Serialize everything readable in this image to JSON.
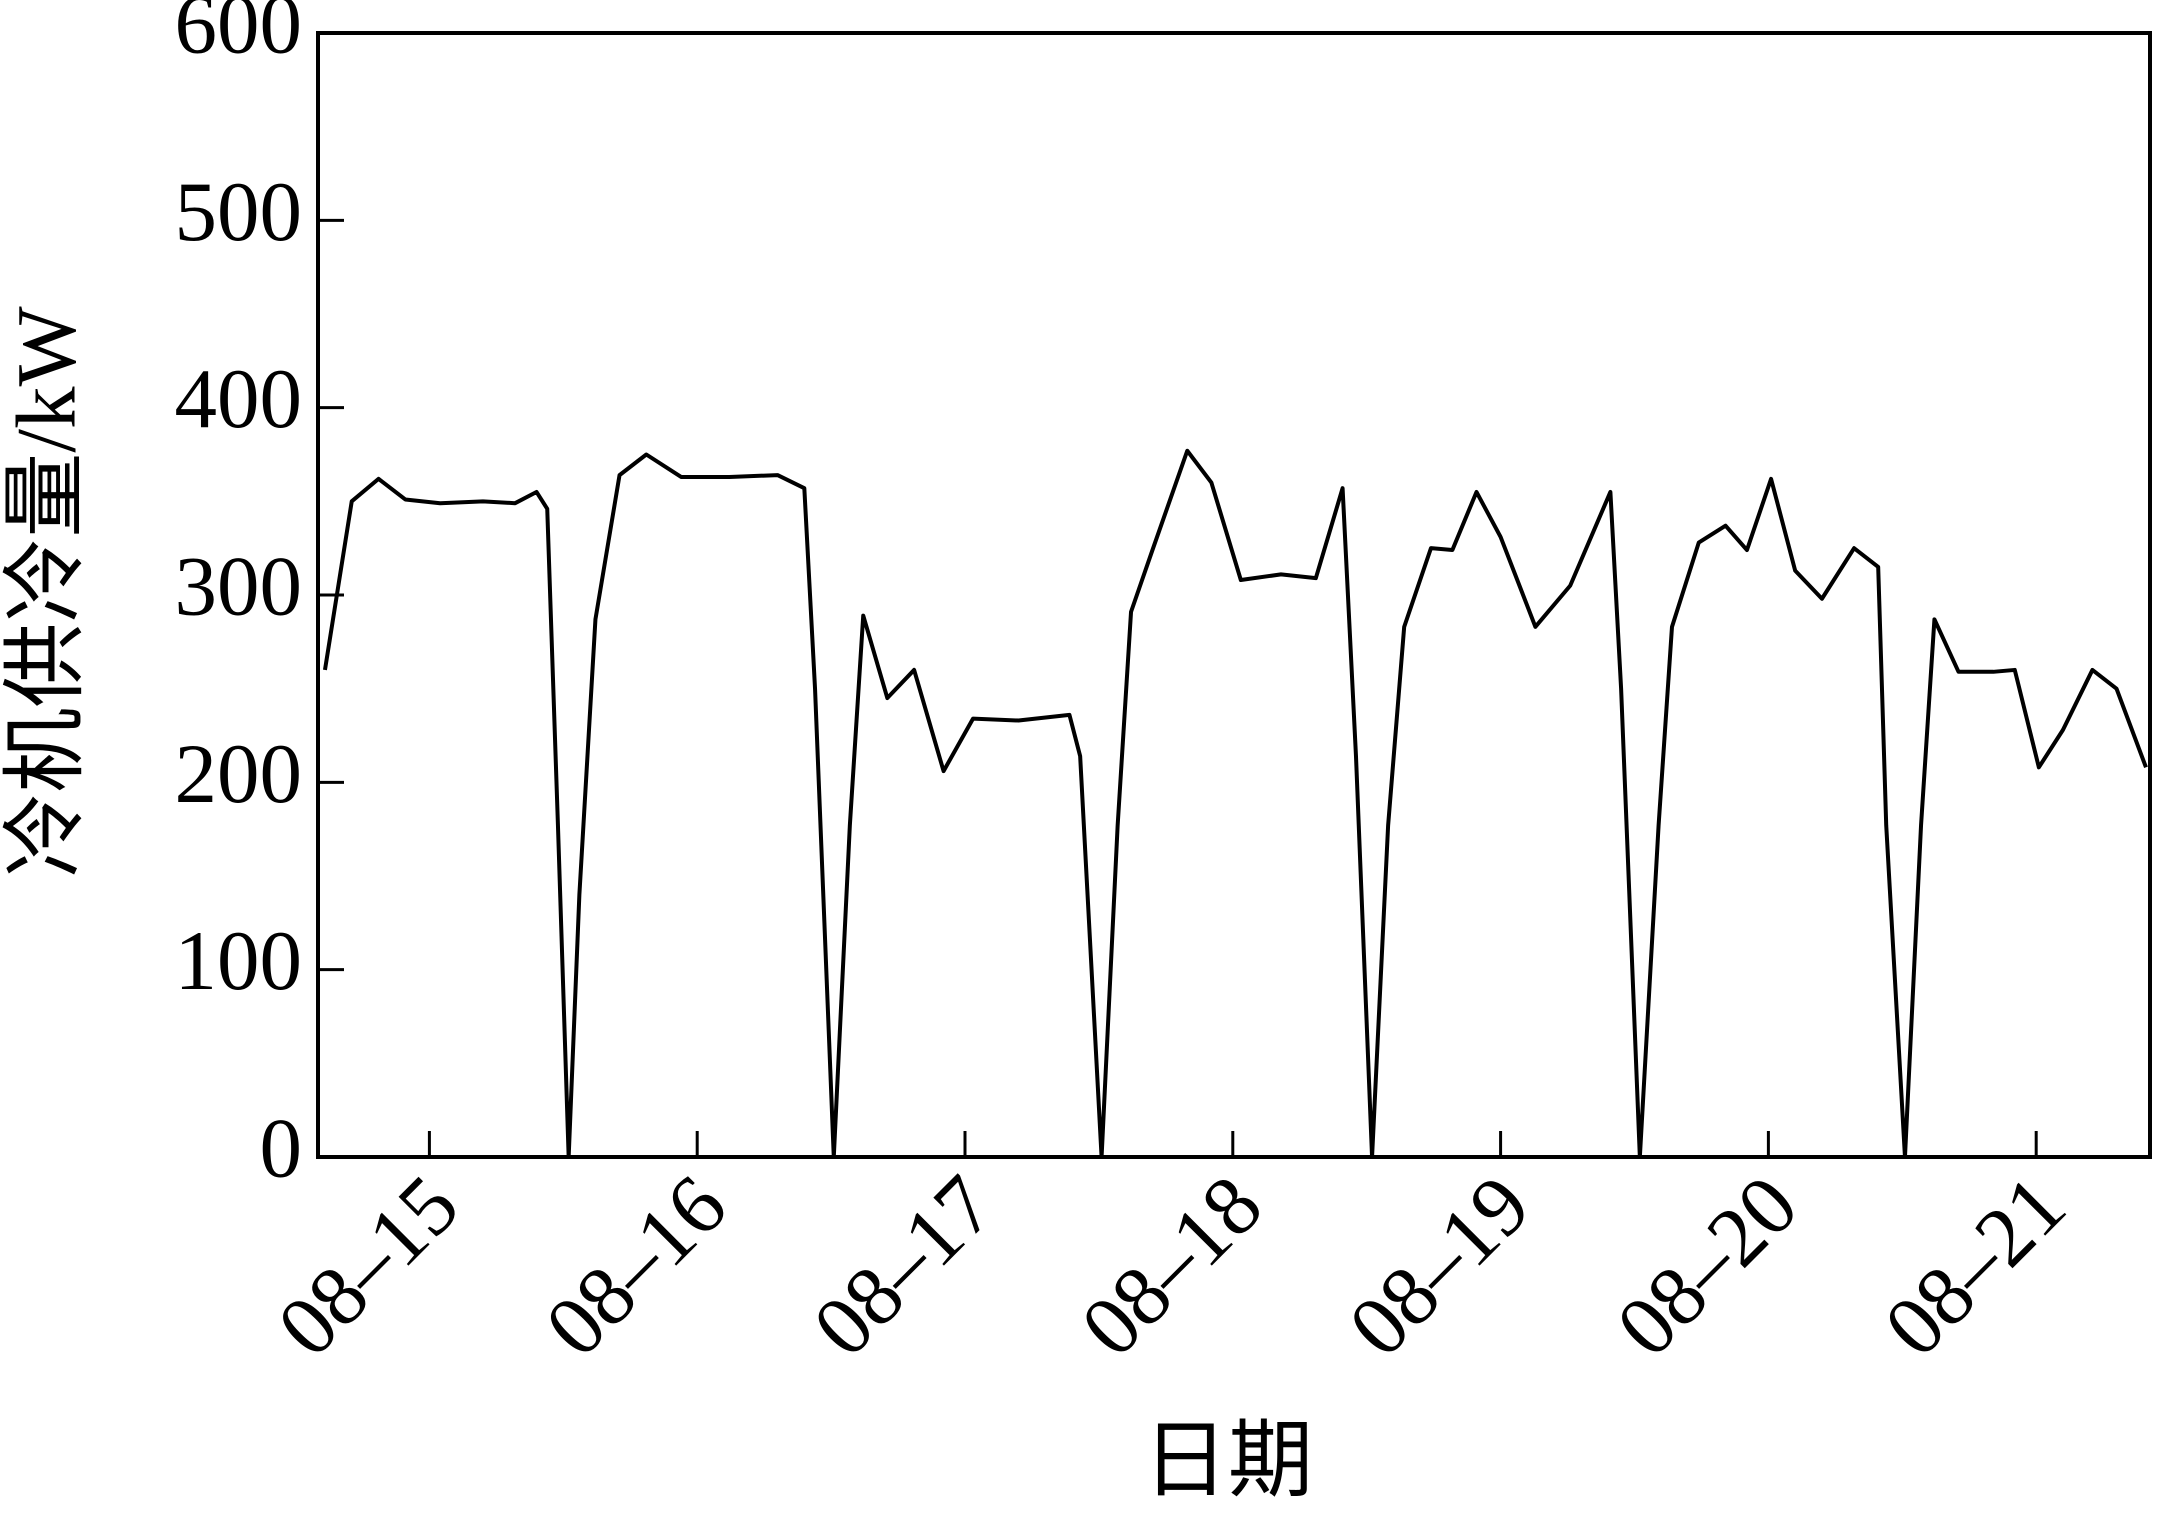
{
  "chart_data": {
    "type": "line",
    "x_label": "日期",
    "y_label": "冷机供冷量/kW",
    "x": [
      -0.39,
      -0.29,
      -0.19,
      -0.09,
      0.04,
      0.2,
      0.32,
      0.4,
      0.44,
      0.48,
      0.52,
      0.56,
      0.62,
      0.71,
      0.81,
      0.94,
      1.12,
      1.3,
      1.4,
      1.44,
      1.51,
      1.57,
      1.62,
      1.71,
      1.81,
      1.92,
      2.03,
      2.2,
      2.39,
      2.43,
      2.51,
      2.57,
      2.62,
      2.7,
      2.83,
      2.92,
      3.03,
      3.18,
      3.31,
      3.41,
      3.46,
      3.52,
      3.58,
      3.64,
      3.74,
      3.82,
      3.91,
      4.0,
      4.13,
      4.26,
      4.41,
      4.45,
      4.52,
      4.59,
      4.64,
      4.74,
      4.84,
      4.92,
      5.01,
      5.1,
      5.2,
      5.32,
      5.41,
      5.44,
      5.51,
      5.57,
      5.62,
      5.71,
      5.84,
      5.92,
      6.01,
      6.1,
      6.21,
      6.3,
      6.41
    ],
    "series": [
      {
        "color": "#000000",
        "values": [
          260,
          350,
          362,
          351,
          349,
          350,
          349,
          355,
          346,
          177,
          0,
          140,
          287,
          364,
          375,
          363,
          363,
          364,
          357,
          250,
          0,
          177,
          289,
          245,
          260,
          206,
          234,
          233,
          236,
          214,
          0,
          177,
          291,
          324,
          377,
          360,
          308,
          311,
          309,
          357,
          214,
          0,
          177,
          283,
          325,
          324,
          355,
          331,
          283,
          305,
          355,
          250,
          0,
          177,
          283,
          328,
          337,
          324,
          362,
          313,
          298,
          325,
          315,
          177,
          0,
          177,
          287,
          259,
          259,
          260,
          208,
          228,
          260,
          250,
          208
        ]
      }
    ],
    "xlim": [
      -0.416,
      6.425
    ],
    "xticks": [
      {
        "value": 0,
        "label": "08–15"
      },
      {
        "value": 1,
        "label": "08–16"
      },
      {
        "value": 2,
        "label": "08–17"
      },
      {
        "value": 3,
        "label": "08–18"
      },
      {
        "value": 4,
        "label": "08–19"
      },
      {
        "value": 5,
        "label": "08–20"
      },
      {
        "value": 6,
        "label": "08–21"
      }
    ],
    "ylim": [
      0,
      600
    ],
    "yticks": [
      0,
      100,
      200,
      300,
      400,
      500,
      600
    ],
    "grid": false
  }
}
